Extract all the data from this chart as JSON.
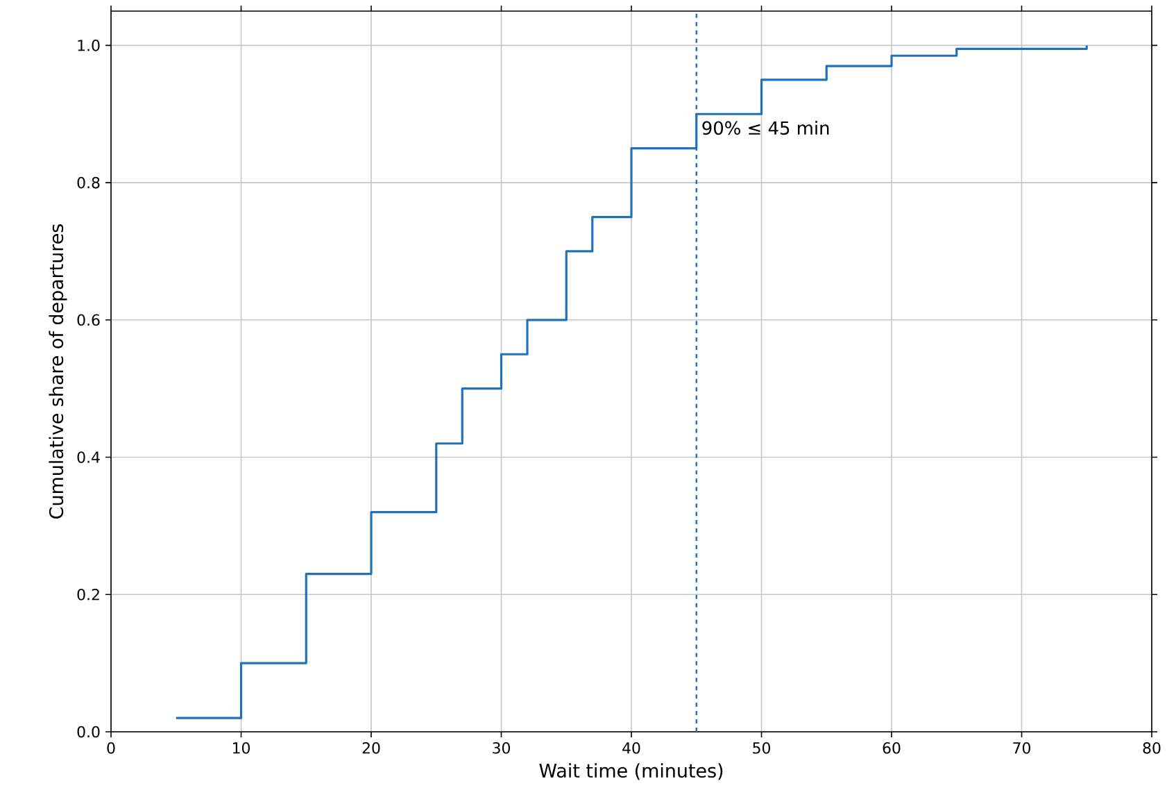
{
  "chart_data": {
    "type": "step",
    "xlabel": "Wait time (minutes)",
    "ylabel": "Cumulative share of departures",
    "x": [
      5,
      10,
      15,
      20,
      25,
      27,
      30,
      32,
      35,
      37,
      40,
      45,
      50,
      55,
      60,
      65,
      75
    ],
    "series": [
      {
        "color": "#1f72b8",
        "values": [
          0.02,
          0.1,
          0.23,
          0.32,
          0.42,
          0.5,
          0.55,
          0.6,
          0.7,
          0.75,
          0.85,
          0.9,
          0.95,
          0.97,
          0.985,
          0.995,
          1.0
        ]
      }
    ],
    "xlim": [
      0,
      80
    ],
    "ylim": [
      0,
      1.05
    ],
    "xticks": [
      0,
      10,
      20,
      30,
      40,
      50,
      60,
      70,
      80
    ],
    "yticks": [
      {
        "value": 0,
        "label": "0.0"
      },
      {
        "value": 0.2,
        "label": "0.2"
      },
      {
        "value": 0.4,
        "label": "0.4"
      },
      {
        "value": 0.6,
        "label": "0.6"
      },
      {
        "value": 0.8,
        "label": "0.8"
      },
      {
        "value": 1.0,
        "label": "1.0"
      }
    ],
    "grid": true,
    "line_style": "solid",
    "ref_lines": [
      {
        "axis": "x",
        "value": 45,
        "label": "90% ≤ 45 min",
        "color": "#1f72b8",
        "line_style": "dashed"
      }
    ]
  }
}
